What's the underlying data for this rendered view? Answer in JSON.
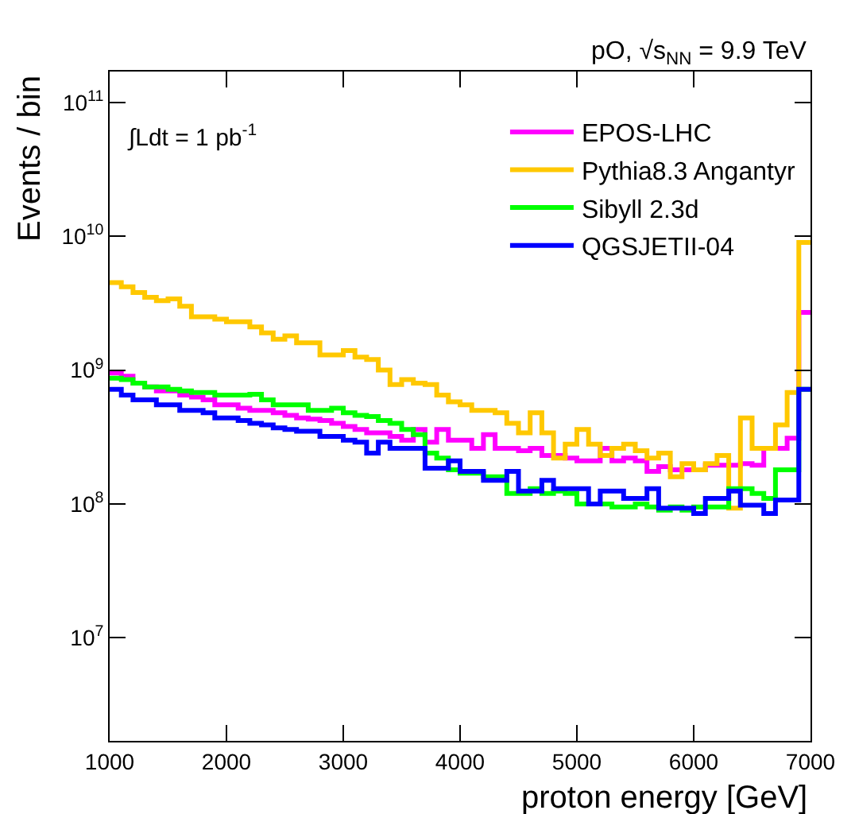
{
  "chart_data": {
    "type": "histogram",
    "title": "pO, √s$_{NN}$ = 9.9 TeV",
    "xlabel": "proton energy [GeV]",
    "ylabel": "Events / bin",
    "annotations": [
      "∫Ldt = 1 pb$^{-1}$"
    ],
    "bins": [
      1000,
      1100,
      1200,
      1300,
      1400,
      1500,
      1600,
      1700,
      1800,
      1900,
      2000,
      2100,
      2200,
      2300,
      2400,
      2500,
      2600,
      2700,
      2800,
      2900,
      3000,
      3100,
      3200,
      3300,
      3400,
      3500,
      3600,
      3700,
      3800,
      3900,
      4000,
      4100,
      4200,
      4300,
      4400,
      4500,
      4600,
      4700,
      4800,
      4900,
      5000,
      5100,
      5200,
      5300,
      5400,
      5500,
      5600,
      5700,
      5800,
      5900,
      6000,
      6100,
      6200,
      6300,
      6400,
      6500,
      6600,
      6700,
      6800,
      6900,
      7000
    ],
    "series": [
      {
        "name": "EPOS-LHC",
        "color": "#ff00ff",
        "values": [
          950000000.0,
          900000000.0,
          800000000.0,
          750000000.0,
          700000000.0,
          700000000.0,
          650000000.0,
          630000000.0,
          600000000.0,
          550000000.0,
          550000000.0,
          520000000.0,
          500000000.0,
          500000000.0,
          480000000.0,
          460000000.0,
          440000000.0,
          430000000.0,
          420000000.0,
          400000000.0,
          380000000.0,
          360000000.0,
          340000000.0,
          340000000.0,
          320000000.0,
          300000000.0,
          360000000.0,
          290000000.0,
          360000000.0,
          300000000.0,
          300000000.0,
          260000000.0,
          330000000.0,
          260000000.0,
          260000000.0,
          250000000.0,
          260000000.0,
          230000000.0,
          230000000.0,
          220000000.0,
          210000000.0,
          210000000.0,
          260000000.0,
          210000000.0,
          220000000.0,
          210000000.0,
          175000000.0,
          190000000.0,
          180000000.0,
          180000000.0,
          180000000.0,
          195000000.0,
          195000000.0,
          195000000.0,
          200000000.0,
          195000000.0,
          260000000.0,
          260000000.0,
          310000000.0,
          2700000000.0
        ]
      },
      {
        "name": "Pythia8.3 Angantyr",
        "color": "#ffc800",
        "values": [
          4500000000.0,
          4200000000.0,
          3800000000.0,
          3500000000.0,
          3300000000.0,
          3400000000.0,
          3000000000.0,
          2500000000.0,
          2500000000.0,
          2400000000.0,
          2300000000.0,
          2300000000.0,
          2100000000.0,
          1900000000.0,
          1700000000.0,
          1800000000.0,
          1600000000.0,
          1600000000.0,
          1300000000.0,
          1300000000.0,
          1400000000.0,
          1250000000.0,
          1200000000.0,
          1000000000.0,
          780000000.0,
          850000000.0,
          800000000.0,
          780000000.0,
          650000000.0,
          580000000.0,
          550000000.0,
          500000000.0,
          500000000.0,
          480000000.0,
          400000000.0,
          340000000.0,
          480000000.0,
          340000000.0,
          220000000.0,
          280000000.0,
          360000000.0,
          280000000.0,
          230000000.0,
          260000000.0,
          280000000.0,
          250000000.0,
          220000000.0,
          240000000.0,
          160000000.0,
          200000000.0,
          180000000.0,
          200000000.0,
          230000000.0,
          93000000.0,
          440000000.0,
          260000000.0,
          260000000.0,
          390000000.0,
          680000000.0,
          9000000000.0
        ]
      },
      {
        "name": "Sibyll 2.3d",
        "color": "#00ff00",
        "values": [
          870000000.0,
          850000000.0,
          800000000.0,
          750000000.0,
          750000000.0,
          720000000.0,
          700000000.0,
          680000000.0,
          680000000.0,
          650000000.0,
          650000000.0,
          650000000.0,
          660000000.0,
          600000000.0,
          550000000.0,
          550000000.0,
          550000000.0,
          500000000.0,
          500000000.0,
          520000000.0,
          480000000.0,
          460000000.0,
          450000000.0,
          420000000.0,
          400000000.0,
          360000000.0,
          330000000.0,
          240000000.0,
          220000000.0,
          180000000.0,
          170000000.0,
          170000000.0,
          160000000.0,
          160000000.0,
          120000000.0,
          120000000.0,
          130000000.0,
          120000000.0,
          125000000.0,
          120000000.0,
          100000000.0,
          100000000.0,
          100000000.0,
          95000000.0,
          95000000.0,
          100000000.0,
          95000000.0,
          90000000.0,
          95000000.0,
          90000000.0,
          95000000.0,
          95000000.0,
          95000000.0,
          130000000.0,
          130000000.0,
          120000000.0,
          110000000.0,
          180000000.0,
          180000000.0,
          720000000.0
        ]
      },
      {
        "name": "QGSJETII-04",
        "color": "#0000ff",
        "values": [
          720000000.0,
          650000000.0,
          600000000.0,
          600000000.0,
          550000000.0,
          550000000.0,
          500000000.0,
          500000000.0,
          480000000.0,
          440000000.0,
          440000000.0,
          420000000.0,
          400000000.0,
          390000000.0,
          370000000.0,
          360000000.0,
          350000000.0,
          350000000.0,
          320000000.0,
          320000000.0,
          300000000.0,
          290000000.0,
          240000000.0,
          290000000.0,
          260000000.0,
          260000000.0,
          260000000.0,
          185000000.0,
          185000000.0,
          210000000.0,
          175000000.0,
          175000000.0,
          150000000.0,
          150000000.0,
          175000000.0,
          125000000.0,
          125000000.0,
          150000000.0,
          130000000.0,
          130000000.0,
          130000000.0,
          100000000.0,
          125000000.0,
          125000000.0,
          110000000.0,
          110000000.0,
          130000000.0,
          93000000.0,
          93000000.0,
          93000000.0,
          85000000.0,
          110000000.0,
          110000000.0,
          125000000.0,
          98000000.0,
          98000000.0,
          85000000.0,
          107000000.0,
          107000000.0,
          720000000.0
        ]
      }
    ],
    "xlim": [
      1000,
      7000
    ],
    "xticks": [
      1000,
      2000,
      3000,
      4000,
      5000,
      6000,
      7000
    ],
    "ylim": [
      1700000.0,
      170000000000.0
    ],
    "yticks": [
      {
        "value": 10000000.0,
        "label": "10$^{7}$"
      },
      {
        "value": 100000000.0,
        "label": "10$^{8}$"
      },
      {
        "value": 1000000000.0,
        "label": "10$^{9}$"
      },
      {
        "value": 10000000000.0,
        "label": "10$^{10}$"
      },
      {
        "value": 100000000000.0,
        "label": "10$^{11}$"
      }
    ],
    "log": "y",
    "legend": "top right"
  }
}
